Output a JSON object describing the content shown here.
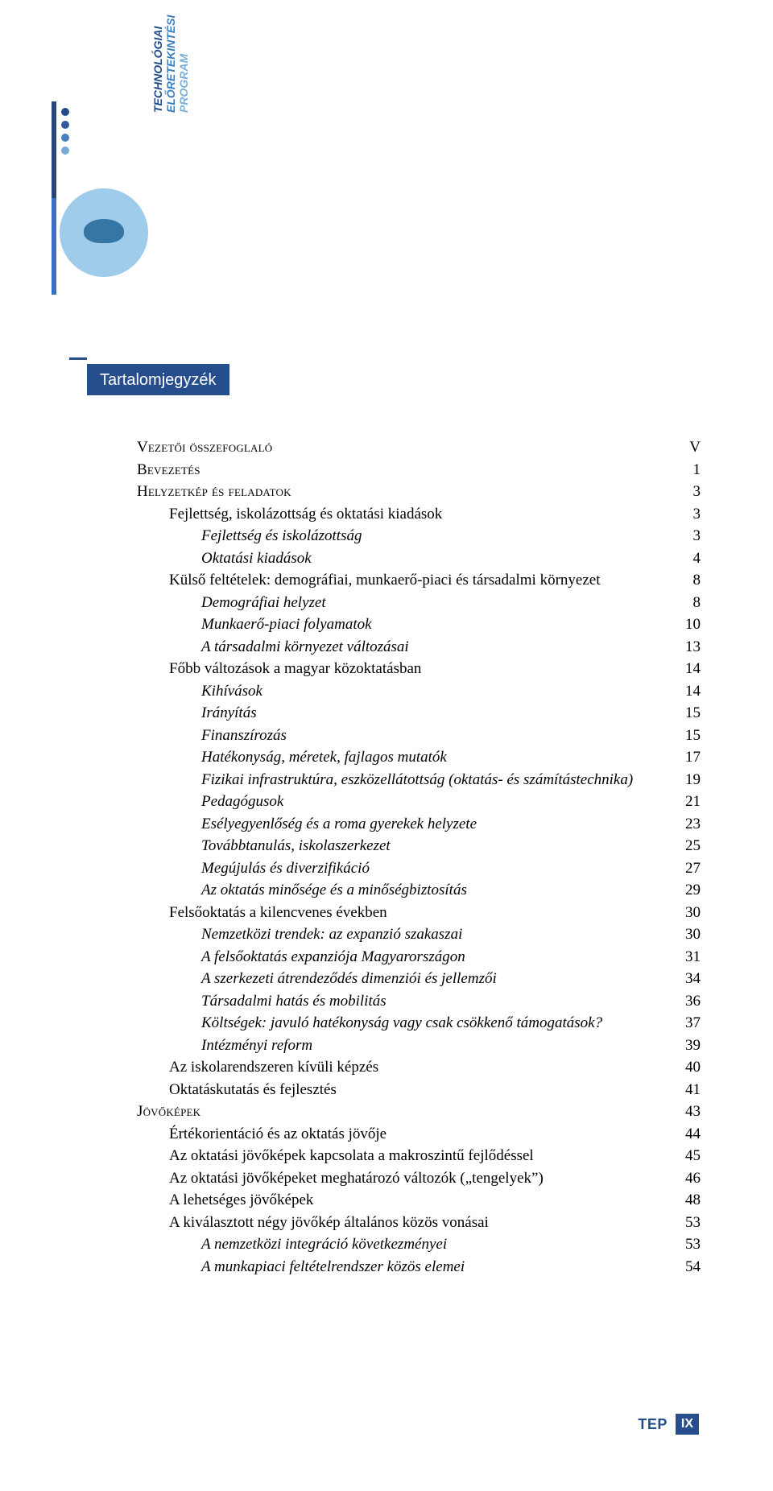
{
  "colors": {
    "brand": "#274e8c",
    "brand_mid": "#3b7ebf",
    "brand_light": "#7aaed8",
    "circle_bg": "#9fcceb",
    "text": "#000000",
    "background": "#ffffff"
  },
  "logo": {
    "line1": "TECHNOLÓGIAI",
    "line2": "ELŐRETEKINTÉSI",
    "line3": "PROGRAM",
    "dot_colors": [
      "#244a88",
      "#305c9e",
      "#477ec0",
      "#76a9d3"
    ]
  },
  "tab": {
    "label": "Tartalomjegyzék"
  },
  "toc": [
    {
      "label": "Vezetői összefoglaló",
      "page": "V",
      "indent": 0,
      "style": "smallcaps"
    },
    {
      "label": "Bevezetés",
      "page": "1",
      "indent": 0,
      "style": "smallcaps"
    },
    {
      "label": "Helyzetkép és feladatok",
      "page": "3",
      "indent": 0,
      "style": "smallcaps"
    },
    {
      "label": "Fejlettség, iskolázottság és oktatási kiadások",
      "page": "3",
      "indent": 1,
      "style": ""
    },
    {
      "label": "Fejlettség és iskolázottság",
      "page": "3",
      "indent": 2,
      "style": "italic"
    },
    {
      "label": "Oktatási kiadások",
      "page": "4",
      "indent": 2,
      "style": "italic"
    },
    {
      "label": "Külső feltételek: demográfiai, munkaerő-piaci és társadalmi környezet",
      "page": "8",
      "indent": 1,
      "style": ""
    },
    {
      "label": "Demográfiai helyzet",
      "page": "8",
      "indent": 2,
      "style": "italic"
    },
    {
      "label": "Munkaerő-piaci folyamatok",
      "page": "10",
      "indent": 2,
      "style": "italic"
    },
    {
      "label": "A társadalmi környezet változásai",
      "page": "13",
      "indent": 2,
      "style": "italic"
    },
    {
      "label": "Főbb változások a magyar közoktatásban",
      "page": "14",
      "indent": 1,
      "style": ""
    },
    {
      "label": "Kihívások",
      "page": "14",
      "indent": 2,
      "style": "italic"
    },
    {
      "label": "Irányítás",
      "page": "15",
      "indent": 2,
      "style": "italic"
    },
    {
      "label": "Finanszírozás",
      "page": "15",
      "indent": 2,
      "style": "italic"
    },
    {
      "label": "Hatékonyság, méretek, fajlagos mutatók",
      "page": "17",
      "indent": 2,
      "style": "italic"
    },
    {
      "label": "Fizikai infrastruktúra, eszközellátottság (oktatás- és számítástechnika)",
      "page": "19",
      "indent": 2,
      "style": "italic"
    },
    {
      "label": "Pedagógusok",
      "page": "21",
      "indent": 2,
      "style": "italic"
    },
    {
      "label": "Esélyegyenlőség és a roma gyerekek helyzete",
      "page": "23",
      "indent": 2,
      "style": "italic"
    },
    {
      "label": "Továbbtanulás, iskolaszerkezet",
      "page": "25",
      "indent": 2,
      "style": "italic"
    },
    {
      "label": "Megújulás és diverzifikáció",
      "page": "27",
      "indent": 2,
      "style": "italic"
    },
    {
      "label": "Az oktatás minősége és a minőségbiztosítás",
      "page": "29",
      "indent": 2,
      "style": "italic"
    },
    {
      "label": "Felsőoktatás a kilencvenes években",
      "page": "30",
      "indent": 1,
      "style": ""
    },
    {
      "label": "Nemzetközi trendek: az expanzió szakaszai",
      "page": "30",
      "indent": 2,
      "style": "italic"
    },
    {
      "label": "A felsőoktatás expanziója Magyarországon",
      "page": "31",
      "indent": 2,
      "style": "italic"
    },
    {
      "label": "A szerkezeti átrendeződés dimenziói és jellemzői",
      "page": "34",
      "indent": 2,
      "style": "italic"
    },
    {
      "label": "Társadalmi hatás és mobilitás",
      "page": "36",
      "indent": 2,
      "style": "italic"
    },
    {
      "label": "Költségek: javuló hatékonyság vagy csak csökkenő támogatások?",
      "page": "37",
      "indent": 2,
      "style": "italic"
    },
    {
      "label": "Intézményi reform",
      "page": "39",
      "indent": 2,
      "style": "italic"
    },
    {
      "label": "Az iskolarendszeren kívüli képzés",
      "page": "40",
      "indent": 1,
      "style": ""
    },
    {
      "label": "Oktatáskutatás és fejlesztés",
      "page": "41",
      "indent": 1,
      "style": ""
    },
    {
      "label": "Jövőképek",
      "page": "43",
      "indent": 0,
      "style": "smallcaps"
    },
    {
      "label": "Értékorientáció és az oktatás jövője",
      "page": "44",
      "indent": 1,
      "style": ""
    },
    {
      "label": "Az oktatási jövőképek kapcsolata a makroszintű fejlődéssel",
      "page": "45",
      "indent": 1,
      "style": ""
    },
    {
      "label": "Az oktatási jövőképeket meghatározó változók („tengelyek”)",
      "page": "46",
      "indent": 1,
      "style": ""
    },
    {
      "label": "A lehetséges jövőképek",
      "page": "48",
      "indent": 1,
      "style": ""
    },
    {
      "label": "A kiválasztott négy jövőkép általános közös vonásai",
      "page": "53",
      "indent": 1,
      "style": ""
    },
    {
      "label": "A nemzetközi integráció következményei",
      "page": "53",
      "indent": 2,
      "style": "italic"
    },
    {
      "label": "A munkapiaci feltételrendszer közös elemei",
      "page": "54",
      "indent": 2,
      "style": "italic"
    }
  ],
  "footer": {
    "label": "TEP",
    "page": "IX"
  }
}
